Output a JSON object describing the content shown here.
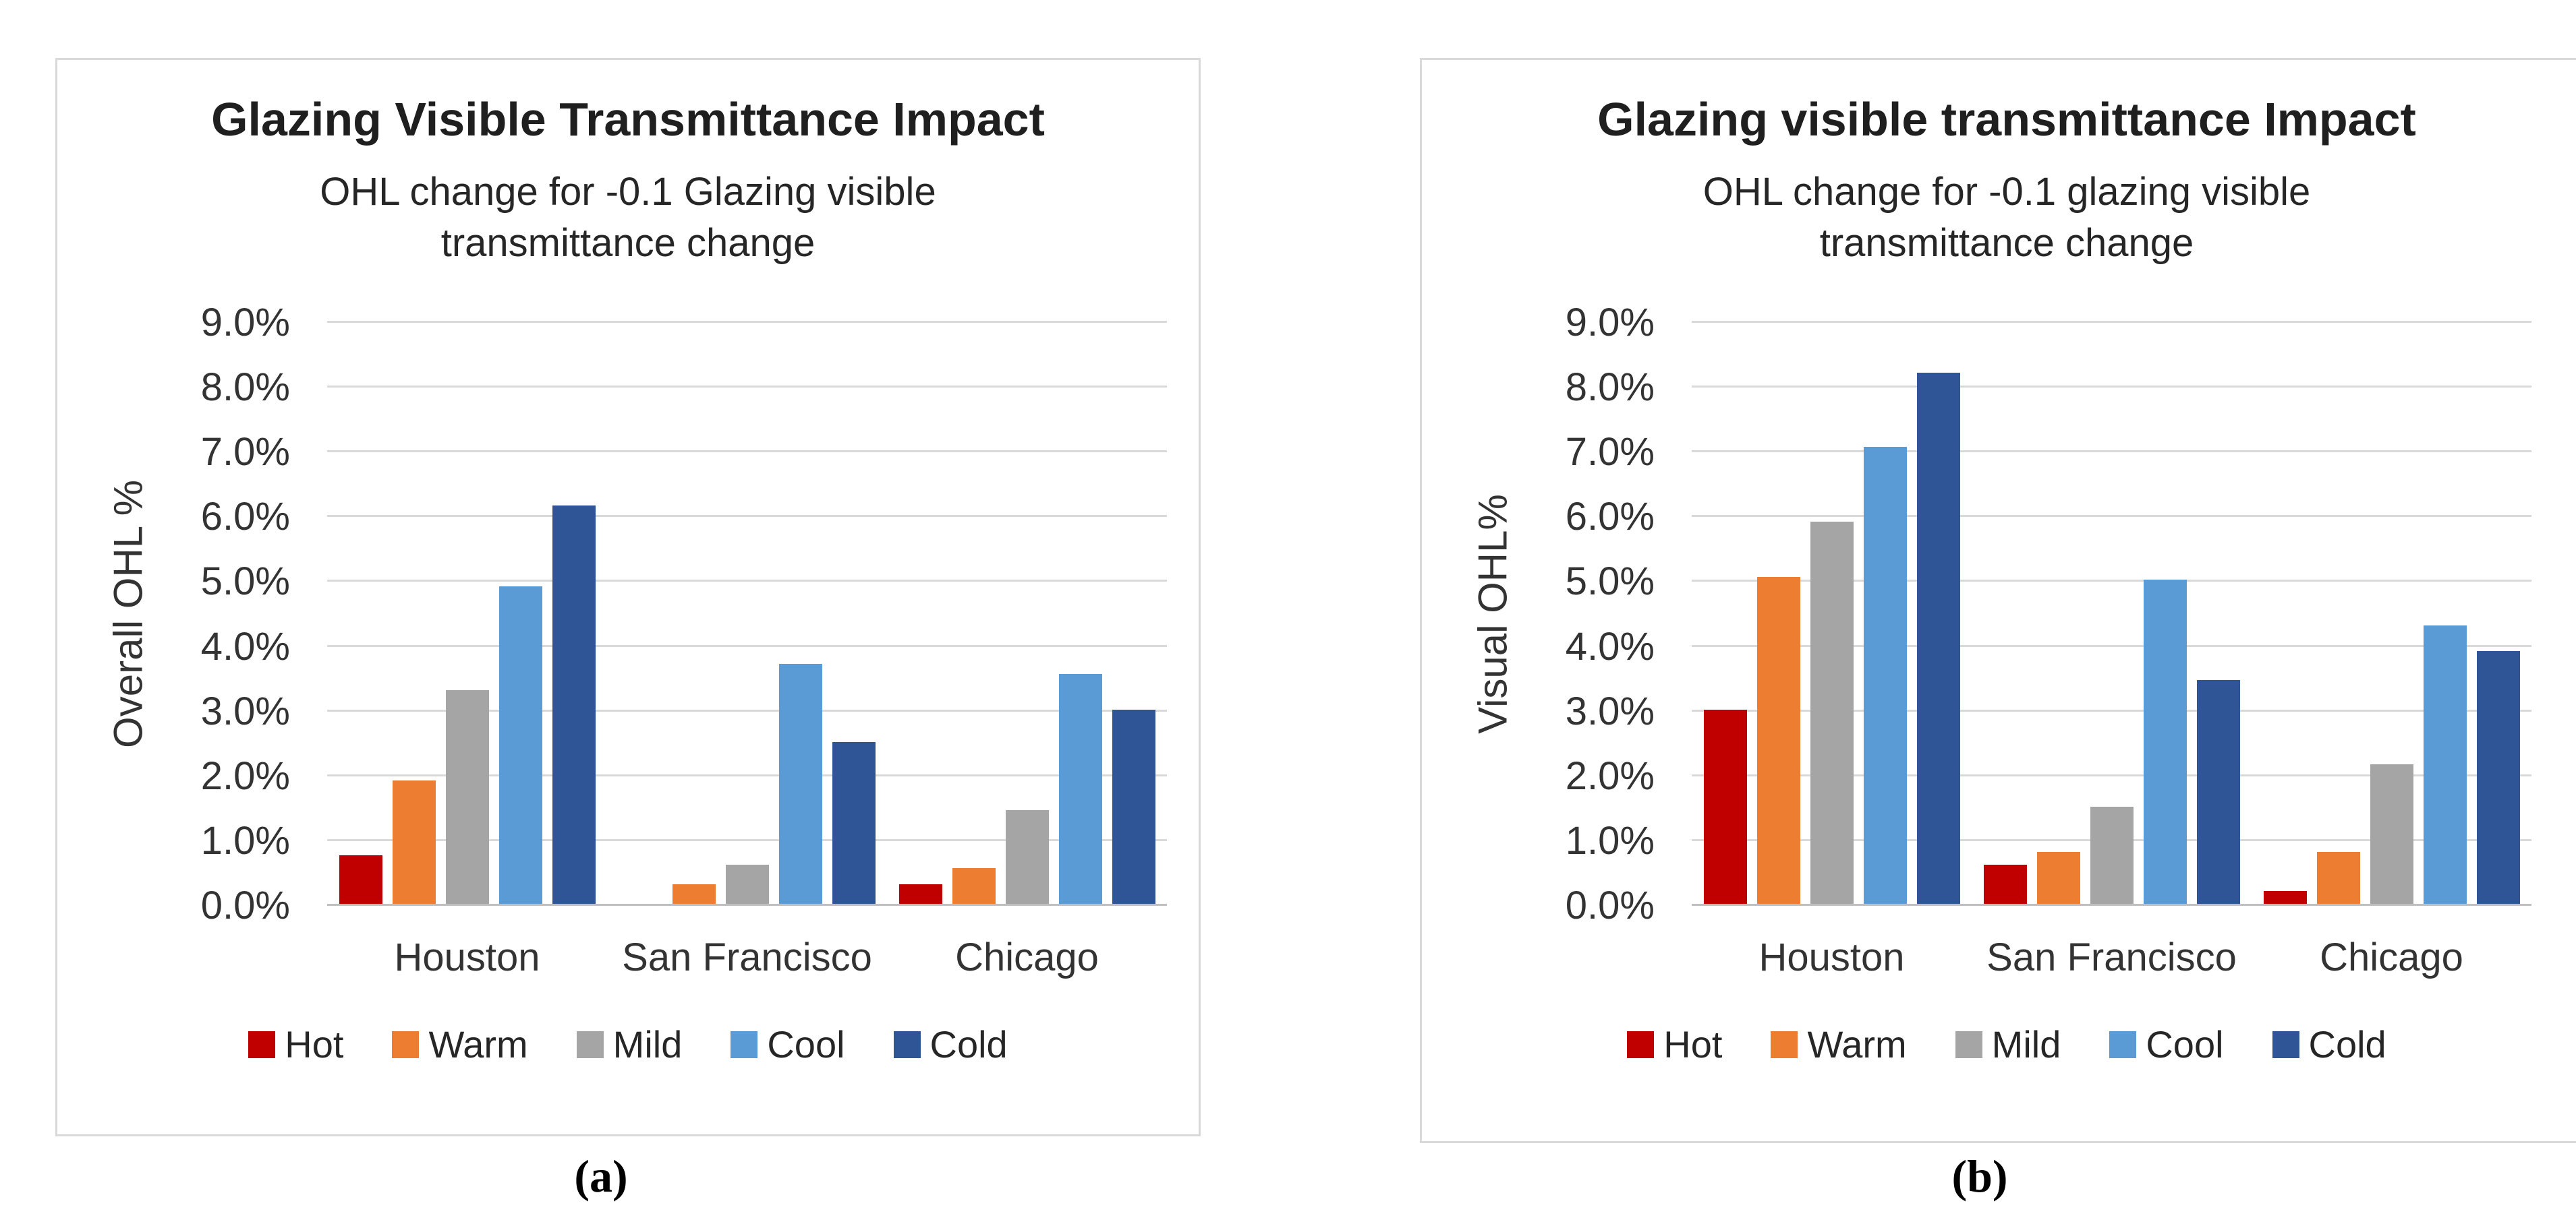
{
  "figure": {
    "captions": {
      "a": "(a)",
      "b": "(b)"
    }
  },
  "chart_data": [
    {
      "type": "bar",
      "panel_label": "a",
      "title": "Glazing Visible Transmittance Impact",
      "subtitle": "OHL change for -0.1 Glazing visible\ntransmittance change",
      "xlabel": "",
      "ylabel": "Overall OHL %",
      "categories": [
        "Houston",
        "San Francisco",
        "Chicago"
      ],
      "series": [
        {
          "name": "Hot",
          "color": "#C00000",
          "values_pct": [
            0.75,
            0.0,
            0.3
          ]
        },
        {
          "name": "Warm",
          "color": "#ED7D31",
          "values_pct": [
            1.9,
            0.3,
            0.55
          ]
        },
        {
          "name": "Mild",
          "color": "#A5A5A5",
          "values_pct": [
            3.3,
            0.6,
            1.45
          ]
        },
        {
          "name": "Cool",
          "color": "#5B9BD5",
          "values_pct": [
            4.9,
            3.7,
            3.55
          ]
        },
        {
          "name": "Cold",
          "color": "#2F5597",
          "values_pct": [
            6.15,
            2.5,
            3.0
          ]
        }
      ],
      "ylim_pct": [
        0,
        9
      ],
      "ytick_step_pct": 1,
      "yticks": [
        "0.0%",
        "1.0%",
        "2.0%",
        "3.0%",
        "4.0%",
        "5.0%",
        "6.0%",
        "7.0%",
        "8.0%",
        "9.0%"
      ],
      "grid": true,
      "legend_position": "bottom"
    },
    {
      "type": "bar",
      "panel_label": "b",
      "title": "Glazing visible transmittance Impact",
      "subtitle": "OHL change for -0.1 glazing visible\ntransmittance change",
      "xlabel": "",
      "ylabel": "Visual OHL%",
      "categories": [
        "Houston",
        "San Francisco",
        "Chicago"
      ],
      "series": [
        {
          "name": "Hot",
          "color": "#C00000",
          "values_pct": [
            3.0,
            0.6,
            0.2
          ]
        },
        {
          "name": "Warm",
          "color": "#ED7D31",
          "values_pct": [
            5.05,
            0.8,
            0.8
          ]
        },
        {
          "name": "Mild",
          "color": "#A5A5A5",
          "values_pct": [
            5.9,
            1.5,
            2.15
          ]
        },
        {
          "name": "Cool",
          "color": "#5B9BD5",
          "values_pct": [
            7.05,
            5.0,
            4.3
          ]
        },
        {
          "name": "Cold",
          "color": "#2F5597",
          "values_pct": [
            8.2,
            3.45,
            3.9
          ]
        }
      ],
      "ylim_pct": [
        0,
        9
      ],
      "ytick_step_pct": 1,
      "yticks": [
        "0.0%",
        "1.0%",
        "2.0%",
        "3.0%",
        "4.0%",
        "5.0%",
        "6.0%",
        "7.0%",
        "8.0%",
        "9.0%"
      ],
      "grid": true,
      "legend_position": "bottom"
    }
  ]
}
